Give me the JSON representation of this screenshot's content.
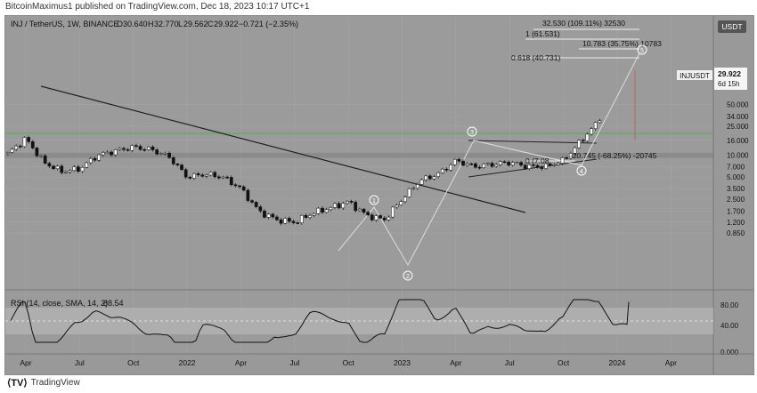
{
  "header": {
    "published_by": "BitcoinMaximus1 published on TradingView.com, Dec 18, 2023 10:17 UTC+1"
  },
  "main_legend": {
    "symbol_text": "INJ / TetherUS, 1W, BINANCE",
    "o_label": "O",
    "o_value": "30.640",
    "h_label": "H",
    "h_value": "32.770",
    "l_label": "L",
    "l_value": "29.562",
    "c_label": "C",
    "c_value": "29.922",
    "change": "−0.721 (−2.35%)"
  },
  "price_scale": {
    "unit": "USDT",
    "ticks": [
      "50.000",
      "34.000",
      "25.000",
      "16.000",
      "10.000",
      "7.000",
      "5.000",
      "3.500",
      "2.500",
      "1.700",
      "1.200",
      "0.850"
    ]
  },
  "last_price": {
    "symbol": "INJUSDT",
    "price": "29.922",
    "countdown": "6d 15h"
  },
  "annotations": {
    "fib_32530": "32.530 (109.11%) 32530",
    "fib_1": "1 (61.531)",
    "fib_10783": "10.783 (35.75%) 10783",
    "fib_0618": "0.618 (40.731)",
    "fib_0": "0 (7.08",
    "measure": "-20.745 (-68.25%) -20745",
    "wave1": "1",
    "wave2": "2",
    "wave3": "3",
    "wave4": "4",
    "wave5": "5"
  },
  "rsi": {
    "legend_label": "RSI (14, close, SMA, 14, 2)",
    "value": "88.54",
    "ticks": [
      "80.00",
      "40.00",
      "0.000"
    ]
  },
  "time_axis": {
    "labels": [
      "Apr",
      "Jul",
      "Oct",
      "2022",
      "Apr",
      "Jul",
      "Oct",
      "2023",
      "Apr",
      "Jul",
      "Oct",
      "2024",
      "Apr"
    ]
  },
  "footer": {
    "brand": "TradingView"
  },
  "colors": {
    "bg": "#9b9b9b",
    "green_line": "#4caf50",
    "trendline": "#222222",
    "zone": "#8a8a8a"
  },
  "chart_data": {
    "type": "candlestick",
    "title": "INJ / TetherUS, 1W, BINANCE",
    "scale": "log",
    "ylim": [
      0.8,
      60
    ],
    "x": [
      "2021-04",
      "2021-07",
      "2021-10",
      "2022-01",
      "2022-04",
      "2022-07",
      "2022-10",
      "2023-01",
      "2023-04",
      "2023-07",
      "2023-10",
      "2024-01",
      "2024-04"
    ],
    "close_path": [
      [
        "2021-03",
        10.5
      ],
      [
        "2021-04",
        17.0
      ],
      [
        "2021-05",
        8.0
      ],
      [
        "2021-06",
        6.0
      ],
      [
        "2021-07",
        6.5
      ],
      [
        "2021-08",
        10.0
      ],
      [
        "2021-09",
        11.5
      ],
      [
        "2021-10",
        13.0
      ],
      [
        "2021-11",
        12.0
      ],
      [
        "2021-12",
        9.5
      ],
      [
        "2022-01",
        5.0
      ],
      [
        "2022-02",
        5.5
      ],
      [
        "2022-03",
        5.0
      ],
      [
        "2022-04",
        3.5
      ],
      [
        "2022-05",
        1.7
      ],
      [
        "2022-06",
        1.3
      ],
      [
        "2022-07",
        1.2
      ],
      [
        "2022-08",
        1.6
      ],
      [
        "2022-09",
        1.9
      ],
      [
        "2022-10",
        2.3
      ],
      [
        "2022-11",
        1.5
      ],
      [
        "2022-12",
        1.3
      ],
      [
        "2023-01",
        2.5
      ],
      [
        "2023-02",
        4.5
      ],
      [
        "2023-03",
        5.5
      ],
      [
        "2023-04",
        8.5
      ],
      [
        "2023-05",
        7.0
      ],
      [
        "2023-06",
        7.5
      ],
      [
        "2023-07",
        8.0
      ],
      [
        "2023-08",
        7.0
      ],
      [
        "2023-09",
        7.0
      ],
      [
        "2023-10",
        8.5
      ],
      [
        "2023-11",
        16.0
      ],
      [
        "2023-12",
        29.922
      ]
    ],
    "horizontal_levels": [
      {
        "value": 20.0,
        "color": "#4caf50"
      }
    ],
    "zone": [
      9.2,
      10.8
    ],
    "rsi": {
      "value": 88.54,
      "band": [
        30,
        70
      ]
    }
  }
}
